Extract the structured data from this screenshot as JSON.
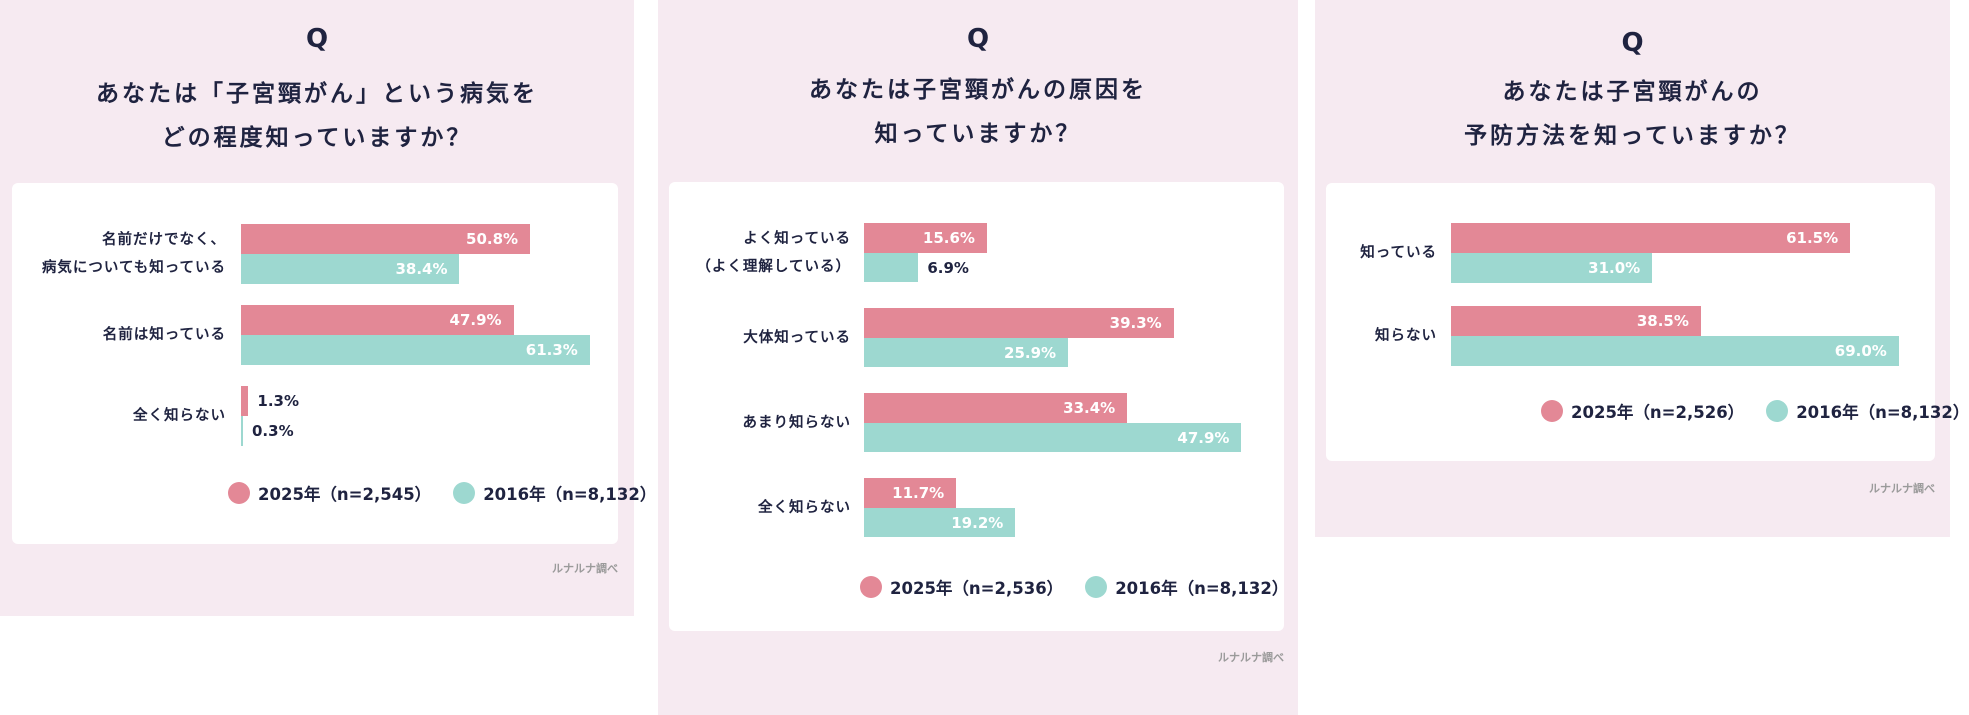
{
  "colors": {
    "background": "#f6eaf1",
    "series_2025": "#e38896",
    "series_2016": "#9dd8d0",
    "text": "#1f2340"
  },
  "chart_data": [
    {
      "type": "bar",
      "orientation": "horizontal",
      "q": "Q",
      "title_lines": [
        "あなたは「子宮頸がん」という病気を",
        "どの程度知っていますか？"
      ],
      "categories": [
        "名前だけでなく、\n病気についても知っている",
        "名前は知っている",
        "全く知らない"
      ],
      "series": [
        {
          "name": "2025年（n=2,545）",
          "values": [
            50.8,
            47.9,
            1.3
          ],
          "labels": [
            "50.8%",
            "47.9%",
            "1.3%"
          ]
        },
        {
          "name": "2016年（n=8,132）",
          "values": [
            38.4,
            61.3,
            0.3
          ],
          "labels": [
            "38.4%",
            "61.3%",
            "0.3%"
          ]
        }
      ],
      "unit": "%",
      "grid": false,
      "legend": "bottom",
      "source": "ルナルナ調べ"
    },
    {
      "type": "bar",
      "orientation": "horizontal",
      "q": "Q",
      "title_lines": [
        "あなたは子宮頸がんの原因を",
        "知っていますか？"
      ],
      "categories": [
        "よく知っている\n（よく理解している）",
        "大体知っている",
        "あまり知らない",
        "全く知らない"
      ],
      "series": [
        {
          "name": "2025年（n=2,536）",
          "values": [
            15.6,
            39.3,
            33.4,
            11.7
          ],
          "labels": [
            "15.6%",
            "39.3%",
            "33.4%",
            "11.7%"
          ]
        },
        {
          "name": "2016年（n=8,132）",
          "values": [
            6.9,
            25.9,
            47.9,
            19.2
          ],
          "labels": [
            "6.9%",
            "25.9%",
            "47.9%",
            "19.2%"
          ]
        }
      ],
      "unit": "%",
      "grid": false,
      "legend": "bottom",
      "source": "ルナルナ調べ"
    },
    {
      "type": "bar",
      "orientation": "horizontal",
      "q": "Q",
      "title_lines": [
        "あなたは子宮頸がんの",
        "予防方法を知っていますか？"
      ],
      "categories": [
        "知っている",
        "知らない"
      ],
      "series": [
        {
          "name": "2025年（n=2,526）",
          "values": [
            61.5,
            38.5
          ],
          "labels": [
            "61.5%",
            "38.5%"
          ]
        },
        {
          "name": "2016年（n=8,132）",
          "values": [
            31.0,
            69.0
          ],
          "labels": [
            "31.0%",
            "69.0%"
          ]
        }
      ],
      "unit": "%",
      "grid": false,
      "legend": "bottom",
      "source": "ルナルナ調べ"
    }
  ]
}
